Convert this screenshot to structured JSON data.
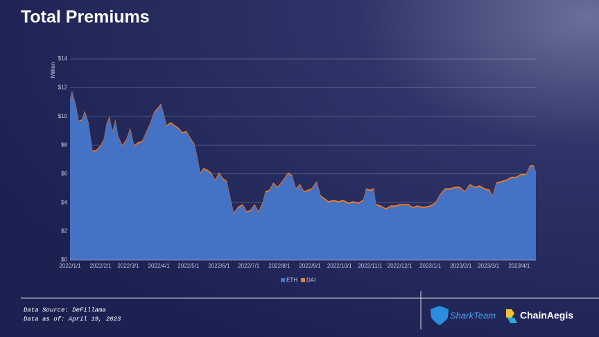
{
  "chart_data": {
    "type": "area",
    "stacked": true,
    "title": "Total Premiums",
    "y_label": "Million",
    "x": [
      "2022/1/1",
      "2022/1/3",
      "2022/1/7",
      "2022/1/10",
      "2022/1/13",
      "2022/1/16",
      "2022/1/20",
      "2022/1/24",
      "2022/1/28",
      "2022/2/1",
      "2022/2/4",
      "2022/2/7",
      "2022/2/10",
      "2022/2/13",
      "2022/2/16",
      "2022/2/19",
      "2022/2/23",
      "2022/2/27",
      "2022/3/3",
      "2022/3/7",
      "2022/3/11",
      "2022/3/15",
      "2022/3/19",
      "2022/3/23",
      "2022/3/27",
      "2022/3/31",
      "2022/4/3",
      "2022/4/6",
      "2022/4/9",
      "2022/4/13",
      "2022/4/17",
      "2022/4/21",
      "2022/4/25",
      "2022/4/29",
      "2022/5/3",
      "2022/5/7",
      "2022/5/10",
      "2022/5/13",
      "2022/5/16",
      "2022/5/20",
      "2022/5/24",
      "2022/5/28",
      "2022/6/1",
      "2022/6/5",
      "2022/6/9",
      "2022/6/13",
      "2022/6/16",
      "2022/6/20",
      "2022/6/25",
      "2022/6/29",
      "2022/7/3",
      "2022/7/7",
      "2022/7/11",
      "2022/7/15",
      "2022/7/18",
      "2022/7/22",
      "2022/7/26",
      "2022/7/30",
      "2022/8/3",
      "2022/8/7",
      "2022/8/10",
      "2022/8/14",
      "2022/8/18",
      "2022/8/22",
      "2022/8/26",
      "2022/8/30",
      "2022/9/3",
      "2022/9/8",
      "2022/9/12",
      "2022/9/16",
      "2022/9/20",
      "2022/9/25",
      "2022/9/30",
      "2022/10/5",
      "2022/10/10",
      "2022/10/15",
      "2022/10/20",
      "2022/10/25",
      "2022/10/28",
      "2022/11/1",
      "2022/11/5",
      "2022/11/7",
      "2022/11/12",
      "2022/11/17",
      "2022/11/22",
      "2022/11/27",
      "2022/12/1",
      "2022/12/5",
      "2022/12/10",
      "2022/12/14",
      "2022/12/19",
      "2022/12/25",
      "2023/1/1",
      "2023/1/6",
      "2023/1/11",
      "2023/1/16",
      "2023/1/21",
      "2023/1/26",
      "2023/1/31",
      "2023/2/5",
      "2023/2/10",
      "2023/2/15",
      "2023/2/20",
      "2023/2/25",
      "2023/3/2",
      "2023/3/5",
      "2023/3/9",
      "2023/3/14",
      "2023/3/19",
      "2023/3/24",
      "2023/3/29",
      "2023/4/3",
      "2023/4/8",
      "2023/4/12",
      "2023/4/16",
      "2023/4/18"
    ],
    "series": [
      {
        "name": "ETH",
        "color": "#4472c4",
        "values": [
          11.1,
          11.7,
          10.7,
          9.6,
          9.7,
          10.3,
          9.4,
          7.5,
          7.6,
          7.9,
          8.3,
          9.4,
          9.9,
          8.9,
          9.7,
          8.5,
          7.9,
          8.3,
          9.1,
          7.9,
          8.1,
          8.2,
          8.8,
          9.4,
          10.2,
          10.5,
          10.8,
          10.1,
          9.3,
          9.5,
          9.3,
          9.1,
          8.8,
          8.9,
          8.4,
          8.0,
          7.1,
          6.0,
          6.3,
          6.2,
          6.0,
          5.5,
          6.0,
          5.6,
          5.4,
          4.1,
          3.2,
          3.6,
          3.8,
          3.3,
          3.4,
          3.8,
          3.3,
          3.9,
          4.7,
          4.8,
          5.3,
          5.0,
          5.3,
          5.7,
          6.0,
          5.8,
          4.9,
          5.2,
          4.7,
          4.8,
          4.9,
          5.4,
          4.4,
          4.2,
          4.0,
          4.1,
          4.0,
          4.1,
          3.9,
          4.0,
          3.9,
          4.1,
          4.9,
          4.8,
          4.9,
          3.8,
          3.7,
          3.5,
          3.7,
          3.7,
          3.8,
          3.8,
          3.8,
          3.6,
          3.7,
          3.6,
          3.7,
          3.9,
          4.5,
          4.9,
          4.9,
          5.0,
          5.0,
          4.7,
          5.2,
          5.0,
          5.1,
          4.9,
          4.8,
          4.4,
          5.3,
          5.4,
          5.5,
          5.7,
          5.7,
          5.9,
          5.9,
          6.5,
          6.5,
          6.0
        ]
      },
      {
        "name": "DAI",
        "color": "#ed7d31",
        "values": [
          0.1,
          0.1,
          0.1,
          0.1,
          0.1,
          0.1,
          0.1,
          0.1,
          0.1,
          0.1,
          0.1,
          0.1,
          0.1,
          0.1,
          0.1,
          0.1,
          0.1,
          0.1,
          0.1,
          0.1,
          0.1,
          0.1,
          0.1,
          0.1,
          0.1,
          0.1,
          0.1,
          0.1,
          0.1,
          0.1,
          0.1,
          0.1,
          0.1,
          0.1,
          0.1,
          0.1,
          0.1,
          0.1,
          0.1,
          0.1,
          0.1,
          0.1,
          0.1,
          0.1,
          0.1,
          0.1,
          0.1,
          0.1,
          0.1,
          0.1,
          0.1,
          0.1,
          0.1,
          0.1,
          0.1,
          0.1,
          0.1,
          0.1,
          0.1,
          0.1,
          0.1,
          0.1,
          0.1,
          0.1,
          0.1,
          0.1,
          0.1,
          0.1,
          0.1,
          0.1,
          0.1,
          0.1,
          0.1,
          0.1,
          0.1,
          0.1,
          0.1,
          0.1,
          0.1,
          0.1,
          0.1,
          0.1,
          0.1,
          0.1,
          0.1,
          0.1,
          0.1,
          0.1,
          0.1,
          0.1,
          0.1,
          0.1,
          0.1,
          0.1,
          0.1,
          0.1,
          0.1,
          0.1,
          0.1,
          0.1,
          0.1,
          0.1,
          0.1,
          0.1,
          0.1,
          0.1,
          0.1,
          0.1,
          0.1,
          0.1,
          0.1,
          0.1,
          0.1,
          0.1,
          0.1,
          0.1
        ]
      }
    ],
    "xlim": [
      "2022/1/1",
      "2023/4/18"
    ],
    "xticks": [
      "2022/1/1",
      "2022/2/1",
      "2022/3/1",
      "2022/4/1",
      "2022/5/1",
      "2022/6/1",
      "2022/7/1",
      "2022/8/1",
      "2022/9/1",
      "2022/10/1",
      "2022/11/1",
      "2022/12/1",
      "2023/1/1",
      "2023/2/1",
      "2023/3/1",
      "2023/4/1"
    ],
    "ylim": [
      0,
      14
    ],
    "yticks": [
      {
        "value": 0,
        "label": "$0"
      },
      {
        "value": 2,
        "label": "$2"
      },
      {
        "value": 4,
        "label": "$4"
      },
      {
        "value": 6,
        "label": "$6"
      },
      {
        "value": 8,
        "label": "$8"
      },
      {
        "value": 10,
        "label": "$10"
      },
      {
        "value": 12,
        "label": "$12"
      },
      {
        "value": 14,
        "label": "$14"
      }
    ],
    "grid": true,
    "legend": "bottom"
  },
  "footer": {
    "source": "Data Source: DeFillama",
    "date": "Data as of: April 19, 2023"
  },
  "logos": [
    "SharkTeam",
    "ChainAegis"
  ]
}
